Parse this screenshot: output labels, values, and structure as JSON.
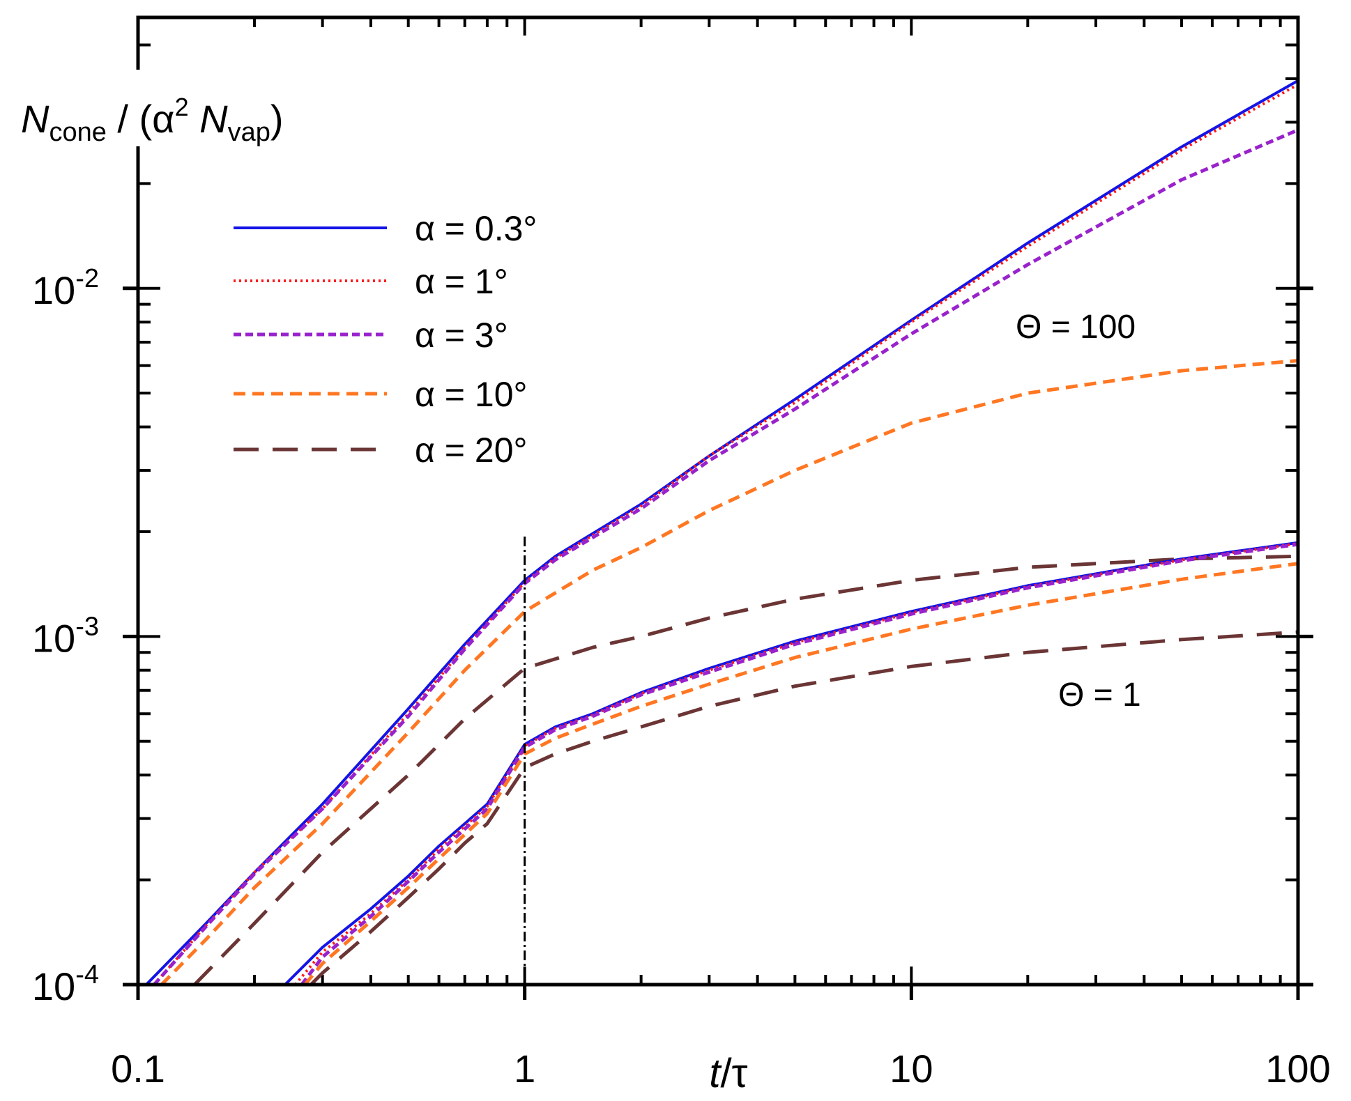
{
  "chart_data": {
    "type": "line",
    "xscale": "log",
    "yscale": "log",
    "xlim": [
      0.1,
      100
    ],
    "ylim": [
      0.0001,
      0.06
    ],
    "xlabel": {
      "italic": "t",
      "rest": "/τ"
    },
    "ylabel": {
      "italic": "N",
      "sub1": "cone",
      "mid": " / (α",
      "sup": "2",
      "italic2": " N",
      "sub2": "vap",
      "end": ")"
    },
    "xticks": [
      {
        "value": 0.1,
        "label": "0.1"
      },
      {
        "value": 1,
        "label": "1"
      },
      {
        "value": 10,
        "label": "10"
      },
      {
        "value": 100,
        "label": "100"
      }
    ],
    "yticks": [
      {
        "value": 0.0001,
        "base": "10",
        "exp": "-4"
      },
      {
        "value": 0.001,
        "base": "10",
        "exp": "-3"
      },
      {
        "value": 0.01,
        "base": "10",
        "exp": "-2"
      }
    ],
    "vline": {
      "x": 1,
      "style": "dash-dot"
    },
    "annotations": [
      {
        "text": "Θ = 100",
        "x": 20,
        "y": 0.0062
      },
      {
        "text": "Θ = 1",
        "x": 20,
        "y": 0.00068
      }
    ],
    "legend": {
      "position": "top-left",
      "entries": [
        {
          "label": "α = 0.3°",
          "color": "#1414e6",
          "dash": "solid",
          "width": 4
        },
        {
          "label": "α = 1°",
          "color": "#ff1a1a",
          "dash": "dotted",
          "width": 4
        },
        {
          "label": "α = 3°",
          "color": "#9922cc",
          "dash": "short",
          "width": 5
        },
        {
          "label": "α = 10°",
          "color": "#ff7722",
          "dash": "medium",
          "width": 5
        },
        {
          "label": "α = 20°",
          "color": "#6b3535",
          "dash": "long",
          "width": 5
        }
      ]
    },
    "series": [
      {
        "name": "α = 0.3°, Θ = 100",
        "style": 0,
        "x": [
          0.105,
          0.15,
          0.2,
          0.3,
          0.5,
          0.7,
          1,
          1.2,
          2,
          3,
          5,
          10,
          20,
          50,
          100
        ],
        "y": [
          0.0001,
          0.00015,
          0.00021,
          0.00033,
          0.00062,
          0.00095,
          0.00145,
          0.0017,
          0.0024,
          0.0033,
          0.0048,
          0.0081,
          0.0135,
          0.0255,
          0.0395
        ]
      },
      {
        "name": "α = 1°, Θ = 100",
        "style": 1,
        "x": [
          0.11,
          0.15,
          0.2,
          0.3,
          0.5,
          0.7,
          1,
          1.2,
          2,
          3,
          5,
          10,
          20,
          50,
          100
        ],
        "y": [
          0.0001,
          0.000148,
          0.00021,
          0.00032,
          0.0006,
          0.00093,
          0.00143,
          0.00168,
          0.00237,
          0.0033,
          0.0047,
          0.008,
          0.0132,
          0.025,
          0.0385
        ]
      },
      {
        "name": "α = 3°, Θ = 100",
        "style": 2,
        "x": [
          0.11,
          0.15,
          0.2,
          0.3,
          0.5,
          0.7,
          1,
          1.2,
          2,
          3,
          5,
          10,
          20,
          50,
          100
        ],
        "y": [
          0.0001,
          0.000147,
          0.000208,
          0.00032,
          0.00059,
          0.00092,
          0.00142,
          0.00166,
          0.00233,
          0.0032,
          0.0045,
          0.0074,
          0.0117,
          0.0205,
          0.0285
        ]
      },
      {
        "name": "α = 10°, Θ = 100",
        "style": 3,
        "x": [
          0.115,
          0.15,
          0.2,
          0.3,
          0.5,
          0.7,
          1,
          1.5,
          2,
          3,
          5,
          10,
          20,
          50,
          100
        ],
        "y": [
          0.0001,
          0.000135,
          0.00019,
          0.00029,
          0.00053,
          0.0008,
          0.00118,
          0.00155,
          0.0018,
          0.0023,
          0.003,
          0.0041,
          0.005,
          0.0058,
          0.0062
        ]
      },
      {
        "name": "α = 20°, Θ = 100",
        "style": 4,
        "x": [
          0.14,
          0.2,
          0.3,
          0.5,
          0.7,
          1,
          1.5,
          2,
          3,
          5,
          10,
          20,
          50,
          100
        ],
        "y": [
          0.0001,
          0.00015,
          0.00024,
          0.0004,
          0.00058,
          0.00081,
          0.00093,
          0.001,
          0.00113,
          0.00128,
          0.00145,
          0.00158,
          0.00167,
          0.0017
        ]
      },
      {
        "name": "α = 0.3°, Θ = 1",
        "style": 0,
        "x": [
          0.24,
          0.3,
          0.4,
          0.5,
          0.6,
          0.7,
          0.8,
          1,
          1.2,
          1.5,
          2,
          3,
          5,
          10,
          20,
          50,
          100
        ],
        "y": [
          0.0001,
          0.000128,
          0.000165,
          0.000205,
          0.00025,
          0.00029,
          0.00033,
          0.00049,
          0.00055,
          0.0006,
          0.00069,
          0.00081,
          0.00097,
          0.00118,
          0.0014,
          0.00167,
          0.00186
        ]
      },
      {
        "name": "α = 1°, Θ = 1",
        "style": 1,
        "x": [
          0.255,
          0.3,
          0.4,
          0.5,
          0.6,
          0.7,
          0.8,
          1,
          1.2,
          1.5,
          2,
          3,
          5,
          10,
          20,
          50,
          100
        ],
        "y": [
          0.0001,
          0.000124,
          0.00016,
          0.0002,
          0.000245,
          0.000285,
          0.000325,
          0.000485,
          0.000545,
          0.000595,
          0.000685,
          0.0008,
          0.00096,
          0.00117,
          0.00139,
          0.00166,
          0.00185
        ]
      },
      {
        "name": "α = 3°, Θ = 1",
        "style": 2,
        "x": [
          0.265,
          0.3,
          0.4,
          0.5,
          0.6,
          0.7,
          0.8,
          1,
          1.2,
          1.5,
          2,
          3,
          5,
          10,
          20,
          50,
          100
        ],
        "y": [
          0.0001,
          0.00012,
          0.000157,
          0.000198,
          0.00024,
          0.00028,
          0.00032,
          0.00048,
          0.00054,
          0.00059,
          0.00068,
          0.00079,
          0.00095,
          0.00116,
          0.00138,
          0.00165,
          0.00184
        ]
      },
      {
        "name": "α = 10°, Θ = 1",
        "style": 3,
        "x": [
          0.27,
          0.3,
          0.4,
          0.5,
          0.6,
          0.7,
          0.8,
          1,
          1.2,
          1.5,
          2,
          3,
          5,
          10,
          20,
          50,
          100
        ],
        "y": [
          0.0001,
          0.000115,
          0.000152,
          0.00019,
          0.00023,
          0.00027,
          0.00031,
          0.00046,
          0.00051,
          0.00056,
          0.00063,
          0.00073,
          0.00087,
          0.00105,
          0.00123,
          0.00146,
          0.00162
        ]
      },
      {
        "name": "α = 20°, Θ = 1",
        "style": 4,
        "x": [
          0.28,
          0.3,
          0.4,
          0.5,
          0.6,
          0.7,
          0.8,
          1,
          1.2,
          1.5,
          2,
          3,
          5,
          10,
          20,
          50,
          100
        ],
        "y": [
          0.0001,
          0.000108,
          0.000142,
          0.000178,
          0.000215,
          0.000255,
          0.00029,
          0.00042,
          0.00046,
          0.0005,
          0.00055,
          0.00063,
          0.00072,
          0.00082,
          0.0009,
          0.00098,
          0.00103
        ]
      }
    ]
  }
}
